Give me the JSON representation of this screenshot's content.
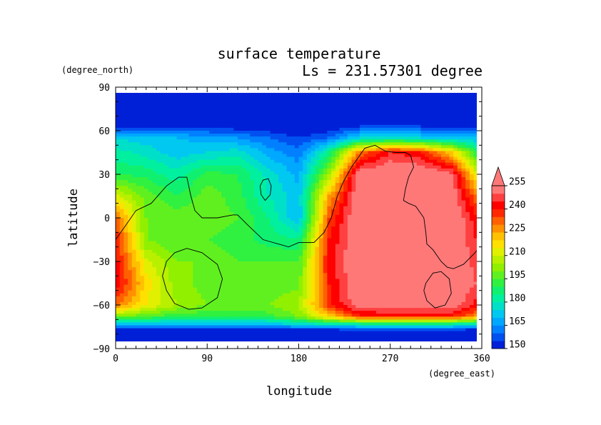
{
  "chart_data": {
    "type": "heatmap",
    "title": "surface temperature",
    "subtitle": "Ls = 231.57301 degree",
    "xlabel": "longitude",
    "ylabel": "latitude",
    "x_unit": "(degree_east)",
    "y_unit": "(degree_north)",
    "xlim": [
      0,
      360
    ],
    "ylim": [
      -90,
      90
    ],
    "x_ticks": [
      "0",
      "90",
      "180",
      "270",
      "360"
    ],
    "y_ticks": [
      "90",
      "60",
      "30",
      "0",
      "−30",
      "−60",
      "−90"
    ],
    "colorbar": {
      "levels": [
        150,
        155,
        160,
        165,
        170,
        175,
        180,
        185,
        190,
        195,
        200,
        205,
        210,
        215,
        220,
        225,
        230,
        235,
        240,
        245,
        250,
        255
      ],
      "tick_labels": [
        "150",
        "165",
        "180",
        "195",
        "210",
        "225",
        "240",
        "255"
      ],
      "colors": [
        "#0020d8",
        "#0050f0",
        "#0080ff",
        "#00a8ff",
        "#00c8f0",
        "#00e0c8",
        "#00f0a0",
        "#10f070",
        "#30f040",
        "#60f020",
        "#90f000",
        "#b8f000",
        "#e0f000",
        "#ffe000",
        "#ffc000",
        "#ff9000",
        "#ff6000",
        "#ff2800",
        "#ff0000",
        "#ff4040",
        "#ff7878"
      ]
    },
    "lat": [
      85,
      65,
      55,
      45,
      30,
      15,
      0,
      -15,
      -30,
      -45,
      -60,
      -68,
      -73,
      -78,
      -88
    ],
    "lon": [
      0,
      30,
      60,
      90,
      120,
      150,
      180,
      210,
      240,
      270,
      300,
      330,
      360
    ],
    "values": [
      [
        148,
        148,
        148,
        148,
        148,
        148,
        148,
        148,
        148,
        148,
        148,
        148,
        148
      ],
      [
        148,
        148,
        148,
        148,
        148,
        148,
        148,
        148,
        150,
        150,
        150,
        150,
        148
      ],
      [
        175,
        172,
        170,
        168,
        165,
        160,
        155,
        160,
        175,
        178,
        175,
        172,
        170
      ],
      [
        182,
        178,
        172,
        175,
        178,
        168,
        162,
        185,
        230,
        245,
        240,
        220,
        185
      ],
      [
        190,
        188,
        182,
        192,
        190,
        178,
        168,
        205,
        255,
        258,
        258,
        252,
        205
      ],
      [
        212,
        198,
        190,
        198,
        192,
        180,
        172,
        225,
        258,
        258,
        258,
        256,
        225
      ],
      [
        232,
        200,
        198,
        198,
        195,
        185,
        170,
        235,
        258,
        258,
        258,
        258,
        238
      ],
      [
        240,
        200,
        195,
        195,
        192,
        188,
        185,
        240,
        258,
        258,
        258,
        258,
        242
      ],
      [
        242,
        212,
        200,
        200,
        195,
        195,
        195,
        242,
        258,
        258,
        258,
        258,
        245
      ],
      [
        245,
        218,
        202,
        198,
        196,
        197,
        198,
        240,
        258,
        258,
        258,
        258,
        248
      ],
      [
        232,
        215,
        205,
        200,
        198,
        200,
        205,
        238,
        255,
        255,
        255,
        255,
        240
      ],
      [
        200,
        195,
        192,
        190,
        190,
        192,
        200,
        220,
        238,
        240,
        240,
        240,
        225
      ],
      [
        172,
        172,
        170,
        170,
        170,
        172,
        178,
        182,
        185,
        185,
        185,
        185,
        180
      ],
      [
        148,
        148,
        148,
        148,
        148,
        148,
        148,
        148,
        148,
        148,
        148,
        148,
        148
      ],
      [
        148,
        148,
        148,
        148,
        148,
        148,
        148,
        148,
        148,
        148,
        148,
        148,
        148
      ]
    ],
    "contours": [
      [
        [
          -1,
          -16
        ],
        [
          10,
          -5
        ],
        [
          20,
          5
        ],
        [
          35,
          10
        ],
        [
          50,
          22
        ],
        [
          62,
          28
        ],
        [
          70,
          28
        ],
        [
          74,
          15
        ],
        [
          78,
          5
        ],
        [
          85,
          0
        ],
        [
          100,
          0
        ],
        [
          115,
          2
        ],
        [
          120,
          2
        ],
        [
          130,
          -5
        ],
        [
          145,
          -15
        ],
        [
          160,
          -18
        ],
        [
          170,
          -20
        ],
        [
          180,
          -17
        ],
        [
          195,
          -17
        ],
        [
          205,
          -10
        ],
        [
          212,
          0
        ],
        [
          218,
          15
        ],
        [
          224,
          25
        ],
        [
          232,
          35
        ],
        [
          245,
          48
        ],
        [
          255,
          50
        ],
        [
          265,
          46
        ],
        [
          275,
          45
        ],
        [
          285,
          45
        ],
        [
          290,
          43
        ],
        [
          293,
          35
        ],
        [
          288,
          28
        ],
        [
          285,
          20
        ],
        [
          283,
          12
        ],
        [
          288,
          10
        ],
        [
          295,
          8
        ],
        [
          303,
          0
        ],
        [
          305,
          -10
        ],
        [
          306,
          -18
        ],
        [
          312,
          -22
        ],
        [
          320,
          -30
        ],
        [
          326,
          -34
        ],
        [
          332,
          -35
        ],
        [
          342,
          -32
        ],
        [
          352,
          -25
        ],
        [
          361,
          -18
        ]
      ],
      [
        [
          50,
          -30
        ],
        [
          58,
          -24
        ],
        [
          70,
          -21
        ],
        [
          85,
          -24
        ],
        [
          100,
          -32
        ],
        [
          105,
          -42
        ],
        [
          100,
          -55
        ],
        [
          85,
          -62
        ],
        [
          72,
          -63
        ],
        [
          58,
          -59
        ],
        [
          50,
          -50
        ],
        [
          46,
          -40
        ],
        [
          50,
          -30
        ]
      ],
      [
        [
          145,
          26
        ],
        [
          150,
          27
        ],
        [
          153,
          22
        ],
        [
          152,
          16
        ],
        [
          147,
          12
        ],
        [
          143,
          16
        ],
        [
          142,
          22
        ],
        [
          145,
          26
        ]
      ],
      [
        [
          305,
          -45
        ],
        [
          312,
          -38
        ],
        [
          320,
          -37
        ],
        [
          328,
          -42
        ],
        [
          330,
          -52
        ],
        [
          324,
          -60
        ],
        [
          314,
          -62
        ],
        [
          306,
          -57
        ],
        [
          303,
          -50
        ],
        [
          305,
          -45
        ]
      ]
    ]
  }
}
